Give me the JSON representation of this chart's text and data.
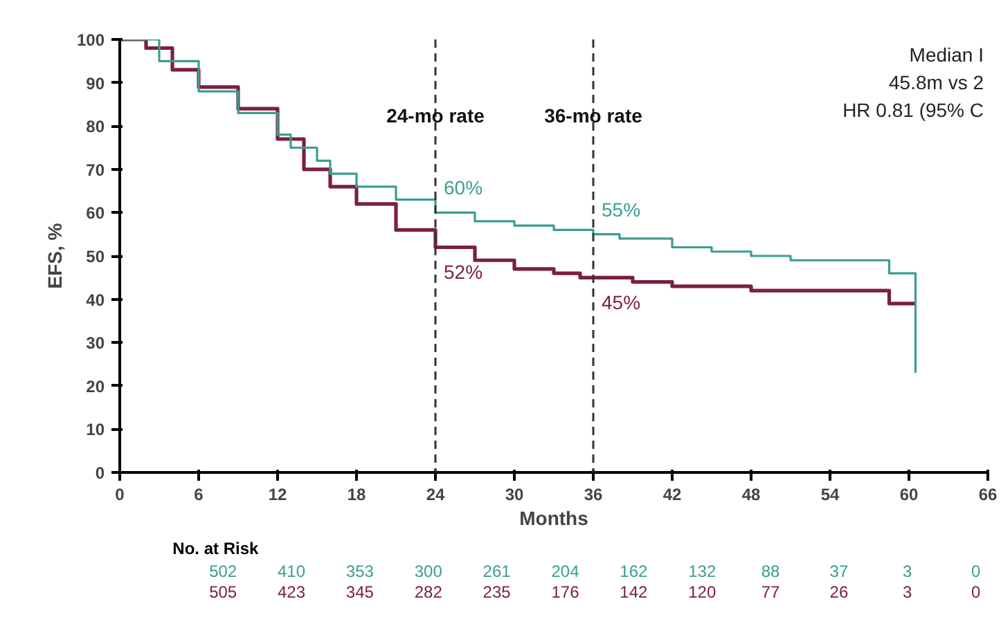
{
  "chart_data": {
    "type": "step",
    "xlabel": "Months",
    "ylabel": "EFS, %",
    "xlim": [
      0,
      66
    ],
    "xticks": [
      0,
      6,
      12,
      18,
      24,
      30,
      36,
      42,
      48,
      54,
      60,
      66
    ],
    "ylim": [
      0,
      100
    ],
    "yticks": [
      0,
      10,
      20,
      30,
      40,
      50,
      60,
      70,
      80,
      90,
      100
    ],
    "grid": false,
    "marker": "none",
    "line_style": "solid",
    "series": [
      {
        "color": "#3a9e8f",
        "x": [
          0,
          1,
          3,
          6,
          9,
          12,
          13,
          15,
          16,
          18,
          21,
          24,
          27,
          30,
          33,
          36,
          38,
          40,
          42,
          45,
          48,
          51,
          54,
          58,
          58.5,
          60.5,
          60.5
        ],
        "values": [
          100,
          100,
          95,
          88,
          83,
          78,
          75,
          72,
          69,
          66,
          63,
          60,
          58,
          57,
          56,
          55,
          54,
          54,
          52,
          51,
          50,
          49,
          49,
          49,
          46,
          46,
          23
        ]
      },
      {
        "color": "#7a2040",
        "x": [
          0,
          2,
          4,
          6,
          9,
          12,
          14,
          16,
          18,
          21,
          24,
          27,
          30,
          33,
          35,
          36,
          39,
          42,
          45,
          48,
          51,
          54,
          58,
          58.5,
          60.5
        ],
        "values": [
          100,
          98,
          93,
          89,
          84,
          77,
          70,
          66,
          62,
          56,
          52,
          49,
          47,
          46,
          45,
          45,
          44,
          43,
          43,
          42,
          42,
          42,
          42,
          39,
          39
        ]
      }
    ],
    "ref_lines": [
      {
        "axis": "x",
        "value": 24,
        "label": "24-mo rate",
        "line_style": "dashed",
        "color": "#333333"
      },
      {
        "axis": "x",
        "value": 36,
        "label": "36-mo rate",
        "line_style": "dashed",
        "color": "#333333"
      }
    ],
    "annotations": [
      "60%",
      "52%",
      "55%",
      "45%",
      "Median I",
      "45.8m vs 2",
      "HR 0.81 (95% C",
      "No. at Risk",
      "502",
      "410",
      "353",
      "300",
      "261",
      "204",
      "162",
      "132",
      "88",
      "37",
      "3",
      "0",
      "505",
      "423",
      "345",
      "282",
      "235",
      "176",
      "142",
      "120",
      "77",
      "26",
      "3",
      "0"
    ]
  }
}
